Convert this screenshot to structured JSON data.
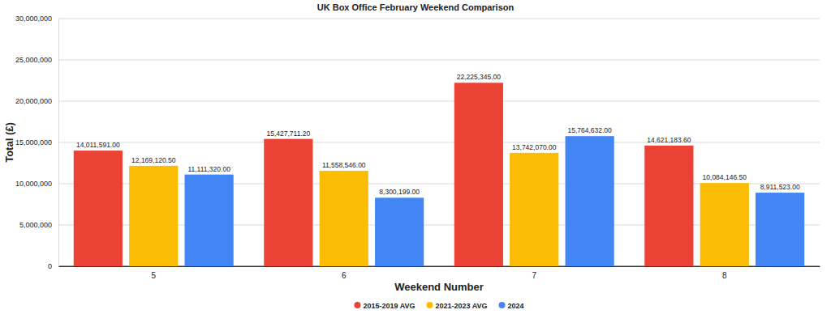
{
  "chart_data": {
    "type": "bar",
    "title": "UK Box Office February Weekend Comparison",
    "x_label": "Weekend Number",
    "y_label": "Total (£)",
    "categories": [
      "5",
      "6",
      "7",
      "8"
    ],
    "series": [
      {
        "name": "2015-2019 AVG",
        "color": "#ea4335",
        "values": [
          14011591.0,
          15427711.2,
          22225345.0,
          14621183.6
        ],
        "value_labels": [
          "14,011,591.00",
          "15,427,711.20",
          "22,225,345.00",
          "14,621,183.60"
        ]
      },
      {
        "name": "2021-2023 AVG",
        "color": "#fbbc04",
        "values": [
          12169120.5,
          11558546.0,
          13742070.0,
          10084146.5
        ],
        "value_labels": [
          "12,169,120.50",
          "11,558,546.00",
          "13,742,070.00",
          "10,084,146.50"
        ]
      },
      {
        "name": "2024",
        "color": "#4285f4",
        "values": [
          11111320.0,
          8300199.0,
          15764632.0,
          8911523.0
        ],
        "value_labels": [
          "11,111,320.00",
          "8,300,199.00",
          "15,764,632.00",
          "8,911,523.00"
        ]
      }
    ],
    "ylim": [
      0,
      30000000
    ],
    "yticks": [
      0,
      {
        "value": 5000000,
        "label": "5,000,000"
      },
      {
        "value": 10000000,
        "label": "10,000,000"
      },
      {
        "value": 15000000,
        "label": "15,000,000"
      },
      {
        "value": 20000000,
        "label": "20,000,000"
      },
      {
        "value": 25000000,
        "label": "25,000,000"
      },
      {
        "value": 30000000,
        "label": "30,000,000"
      }
    ],
    "grid": true,
    "data_labels": true,
    "legend": "bottom"
  }
}
